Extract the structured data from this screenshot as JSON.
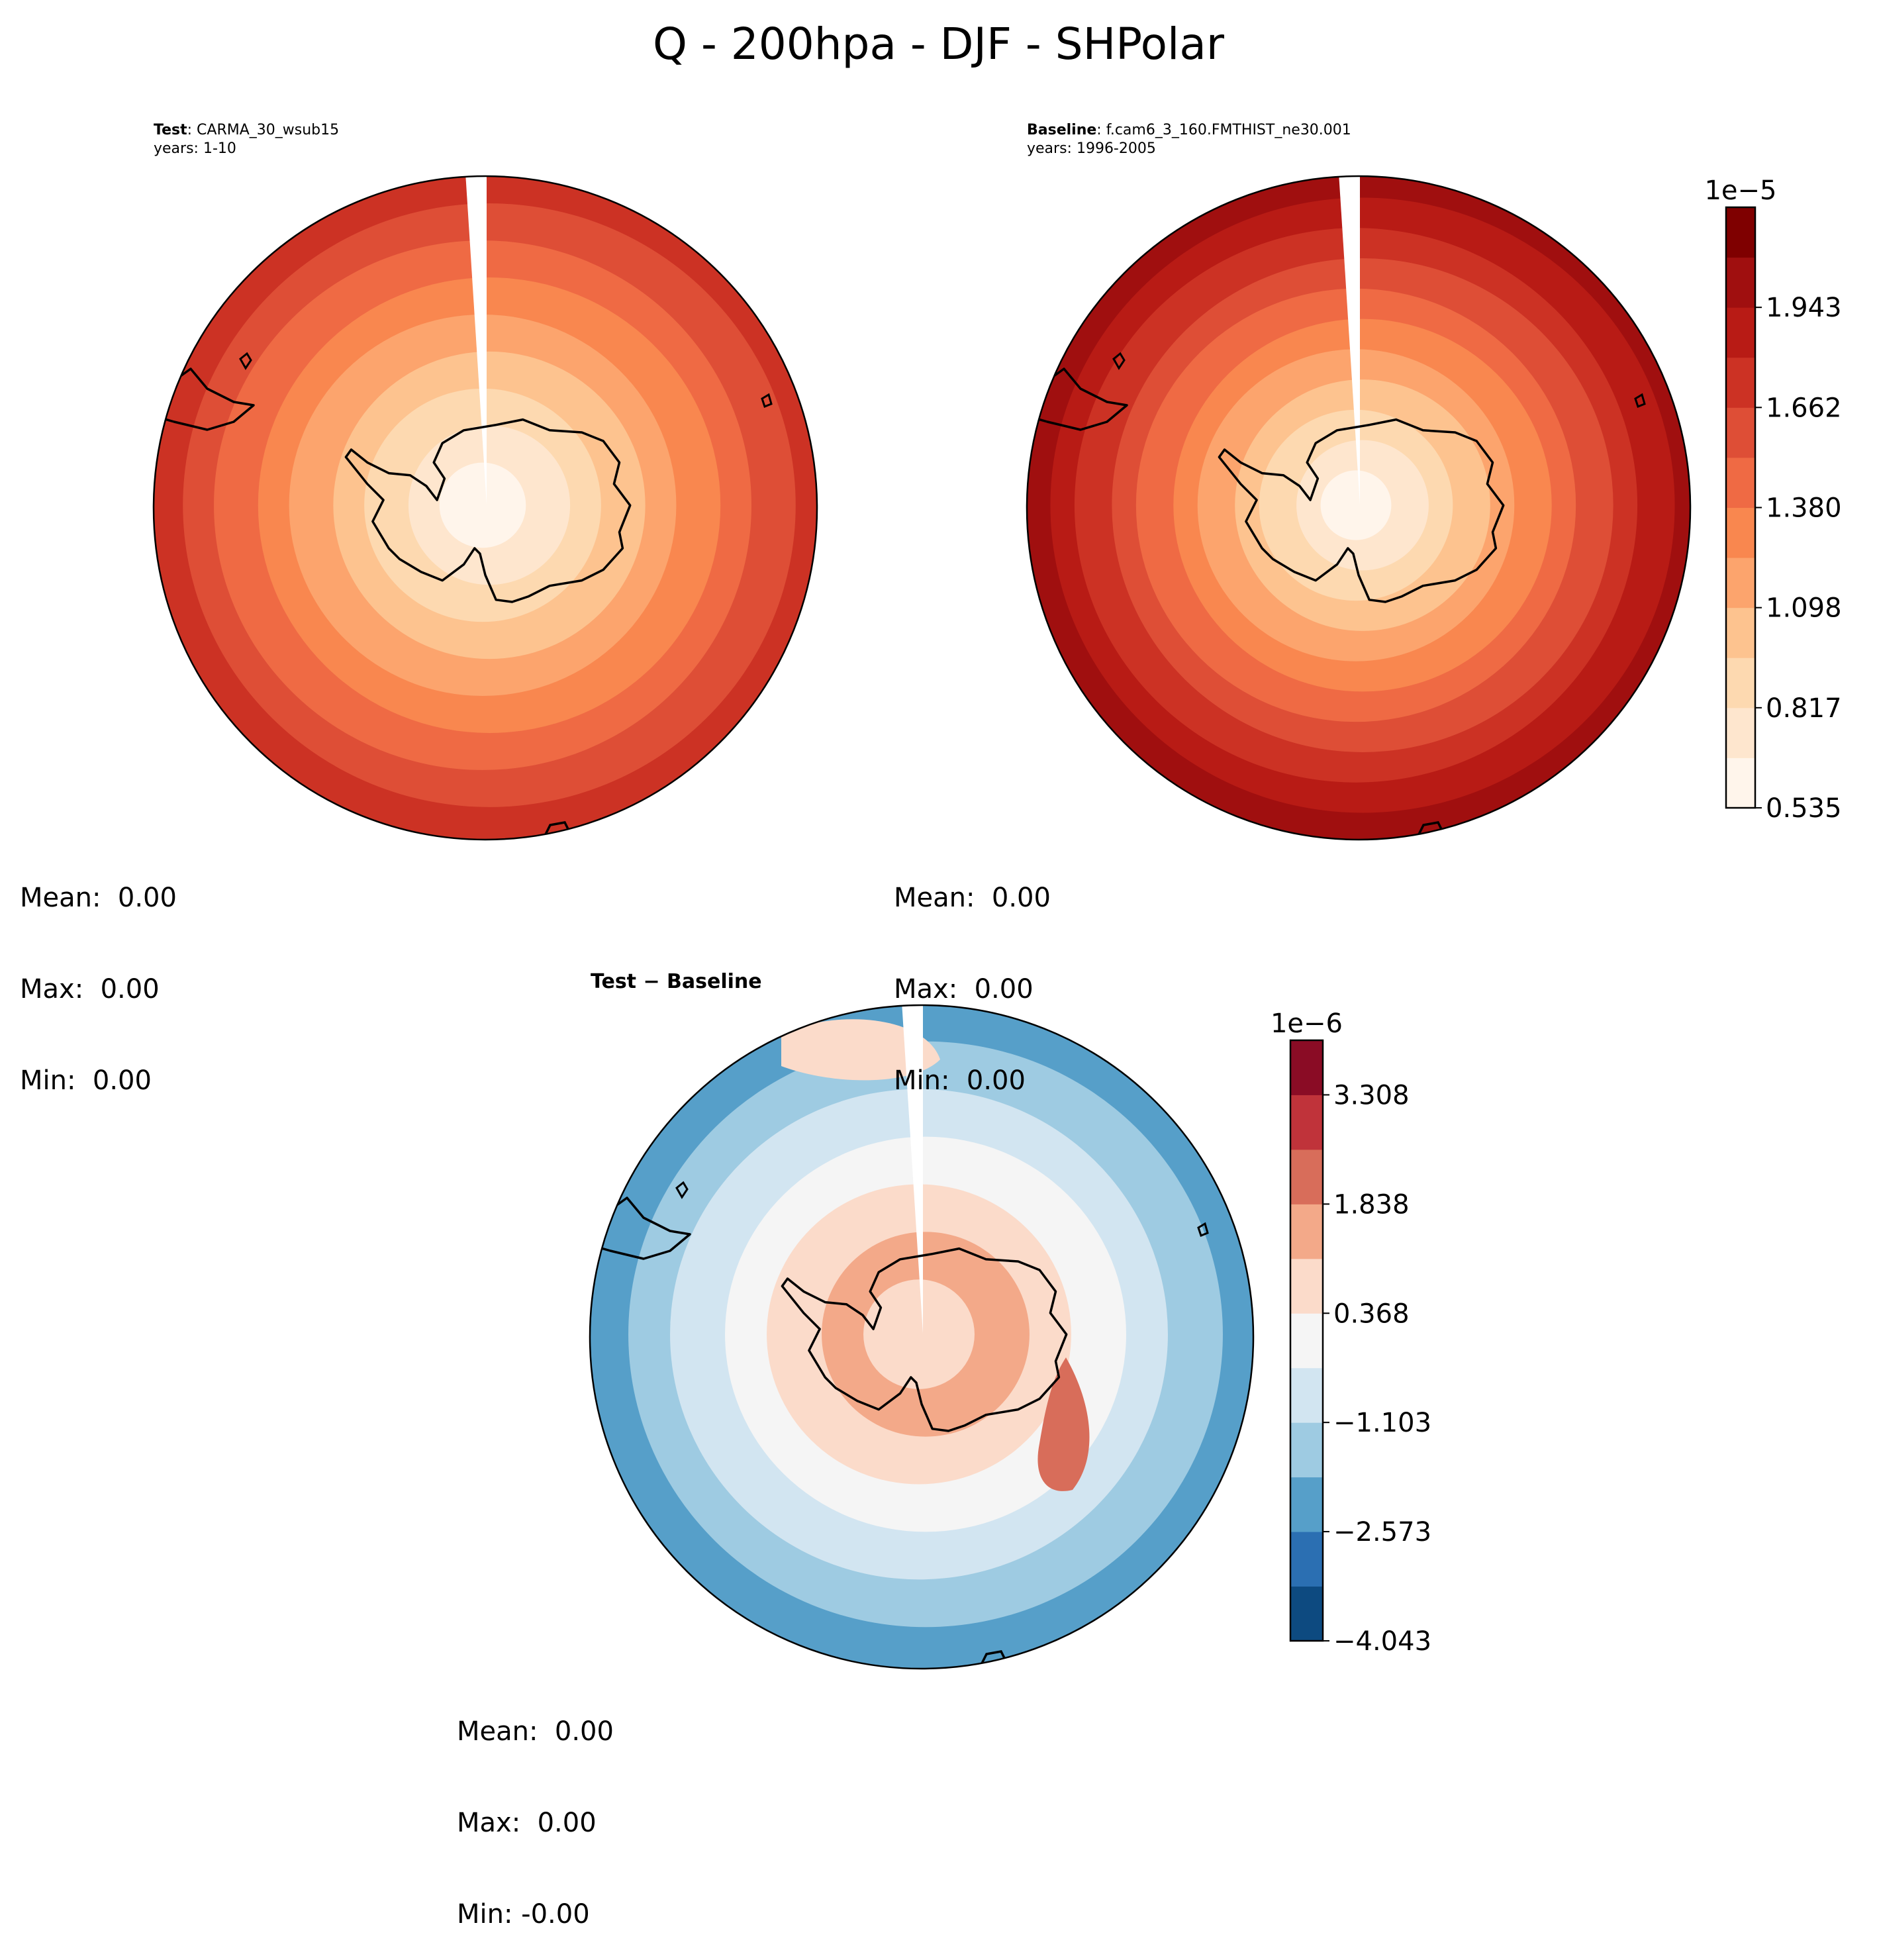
{
  "figure_title": "Q - 200hpa - DJF - SHPolar",
  "panels": {
    "test": {
      "label_bold": "Test",
      "label_rest": ": CARMA_30_wsub15",
      "years": "years: 1-10",
      "mean": "Mean:  0.00",
      "max": "Max:  0.00",
      "min": "Min:  0.00"
    },
    "baseline": {
      "label_bold": "Baseline",
      "label_rest": ": f.cam6_3_160.FMTHIST_ne30.001",
      "years": "years: 1996-2005",
      "mean": "Mean:  0.00",
      "max": "Max:  0.00",
      "min": "Min:  0.00"
    },
    "diff": {
      "label": "Test − Baseline",
      "mean": "Mean:  0.00",
      "max": "Max:  0.00",
      "min": "Min: -0.00"
    }
  },
  "colorbars": {
    "main": {
      "scale": "1e−5",
      "ticks": [
        "0.535",
        "0.817",
        "1.098",
        "1.380",
        "1.662",
        "1.943"
      ],
      "colors": [
        "#fff5eb",
        "#fee6ce",
        "#fdd9b0",
        "#fdc38f",
        "#fca46d",
        "#f9874f",
        "#ef6a44",
        "#de4e36",
        "#cc3224",
        "#b81b15",
        "#a00f0f",
        "#7f0000"
      ]
    },
    "diff": {
      "scale": "1e−6",
      "ticks": [
        "−4.043",
        "−2.573",
        "−1.103",
        "0.368",
        "1.838",
        "3.308"
      ],
      "colors": [
        "#0d4a80",
        "#2b6fb2",
        "#569fc9",
        "#9ecbe2",
        "#d2e5f1",
        "#f5f5f5",
        "#fbdbca",
        "#f3a989",
        "#d86d5a",
        "#c0333a",
        "#8a0c25"
      ]
    }
  },
  "chart_data": [
    {
      "type": "heatmap",
      "title": "Test : CARMA_30_wsub15",
      "subtitle": "years: 1-10",
      "projection": "south polar stereographic",
      "field": "Q at 200 hPa, DJF",
      "units_scale": "1e-5",
      "contour_levels": [
        0.535,
        0.676,
        0.817,
        0.958,
        1.098,
        1.239,
        1.38,
        1.521,
        1.662,
        1.802,
        1.943,
        2.084
      ],
      "ring_levels_center_to_edge": [
        0,
        1,
        2,
        3,
        4,
        5,
        6,
        7,
        8
      ],
      "stats": {
        "mean": "0.00",
        "max": "0.00",
        "min": "0.00"
      }
    },
    {
      "type": "heatmap",
      "title": "Baseline : f.cam6_3_160.FMTHIST_ne30.001",
      "subtitle": "years: 1996-2005",
      "projection": "south polar stereographic",
      "field": "Q at 200 hPa, DJF",
      "units_scale": "1e-5",
      "contour_levels": [
        0.535,
        0.676,
        0.817,
        0.958,
        1.098,
        1.239,
        1.38,
        1.521,
        1.662,
        1.802,
        1.943,
        2.084
      ],
      "ring_levels_center_to_edge": [
        0,
        1,
        2,
        3,
        4,
        5,
        6,
        7,
        8,
        9,
        10
      ],
      "stats": {
        "mean": "0.00",
        "max": "0.00",
        "min": "0.00"
      }
    },
    {
      "type": "heatmap",
      "title": "Test − Baseline",
      "projection": "south polar stereographic",
      "field": "Q difference at 200 hPa, DJF",
      "units_scale": "1e-6",
      "contour_levels": [
        -4.043,
        -3.308,
        -2.573,
        -1.838,
        -1.103,
        -0.368,
        0.368,
        1.103,
        1.838,
        2.573,
        3.308,
        4.043
      ],
      "ring_levels_center_to_edge": [
        6,
        7,
        6,
        5,
        4,
        3,
        2
      ],
      "stats": {
        "mean": "0.00",
        "max": "0.00",
        "min": "-0.00"
      }
    }
  ]
}
